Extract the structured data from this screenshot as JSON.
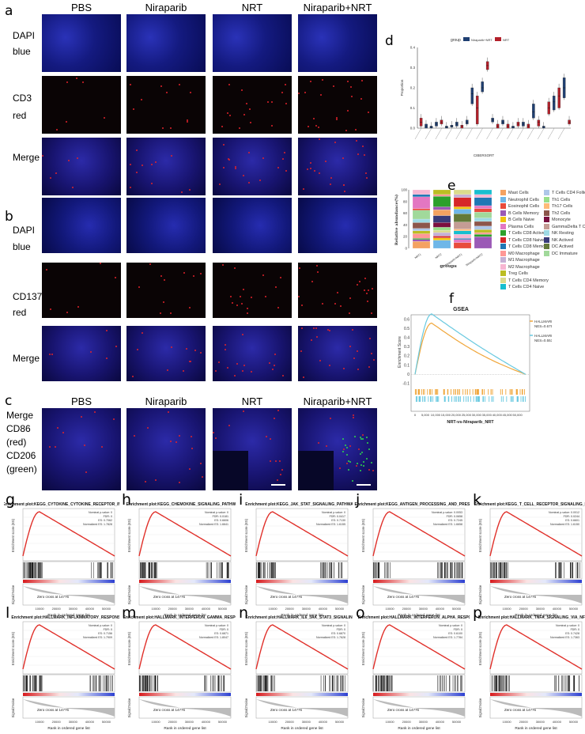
{
  "panels": {
    "a": "a",
    "b": "b",
    "c": "c",
    "d": "d",
    "e": "e",
    "f": "f",
    "g": "g",
    "h": "h",
    "i": "i",
    "j": "j",
    "k": "k",
    "l": "l",
    "m": "m",
    "n": "n",
    "o": "o",
    "p": "p"
  },
  "groups": [
    "PBS",
    "Niraparib",
    "NRT",
    "Niraparib+NRT"
  ],
  "a_rows": [
    "DAPI",
    "blue",
    "CD3",
    "red",
    "Merge"
  ],
  "b_rows": [
    "DAPI",
    "blue",
    "CD137",
    "red",
    "Merge"
  ],
  "c_rows": [
    "Merge",
    "CD86",
    "(red)",
    "CD206",
    "(green)"
  ],
  "d": {
    "legend_title": "group",
    "legend_items": [
      "Niraparib+NRT",
      "NRT"
    ],
    "ylabel": "Proportion",
    "xlabel": "CIBERSORT",
    "yticks": [
      "0.0",
      "0.1",
      "0.2",
      "0.3",
      "0.4"
    ],
    "colors": [
      "#1f3f72",
      "#b3202a"
    ]
  },
  "e": {
    "ylabel": "Relative abundance(%)",
    "xlabel": "groups",
    "yticks": [
      "0",
      "20",
      "40",
      "60",
      "80",
      "100"
    ],
    "xcats": [
      "NRT1",
      "NRT2",
      "Niraparib+NRT1",
      "Niraparib+NRT2"
    ],
    "legend_left": [
      "Mast Cells",
      "Neutrophil Cells",
      "Eosinophil Cells",
      "B Cells Memory",
      "B Cells Naive",
      "Plasma Cells",
      "T Cells CD8 Actived",
      "T Cells CD8 Naive",
      "T Cells CD8 Memory",
      "M0 Macrophage",
      "M1 Macrophage",
      "M2 Macrophage",
      "Treg Cells",
      "T Cells CD4 Memory",
      "T Cells CD4 Naive"
    ],
    "legend_right": [
      "T Cells CD4 Follicular",
      "Th1 Cells",
      "Th17 Cells",
      "Th2 Cells",
      "Monocyte",
      "GammaDelta T Cells",
      "NK Resting",
      "NK Actived",
      "DC Actived",
      "DC Immature"
    ],
    "colors_left": [
      "#f4a261",
      "#6fb7e8",
      "#e84b3c",
      "#9b59b6",
      "#f1c40f",
      "#e377c2",
      "#2ca02c",
      "#d62728",
      "#1f77b4",
      "#ff9896",
      "#c5b0d5",
      "#f7b6d2",
      "#bcbd22",
      "#dbdb8d",
      "#17becf"
    ],
    "colors_right": [
      "#aec7e8",
      "#98df8a",
      "#ffbb78",
      "#8c564b",
      "#7b1040",
      "#c49c94",
      "#9edae5",
      "#393b79",
      "#637939",
      "#a1d99b"
    ]
  },
  "f": {
    "title": "GSEA",
    "ylabel": "Enrichment Score",
    "xlabel": "NRT-vs-Niraparib_NRT",
    "yticks": [
      "0.6",
      "0.5",
      "0.4",
      "0.3",
      "0.2",
      "0.1",
      "0",
      "-0.1"
    ],
    "xticks": [
      "0",
      "5,000",
      "10,000",
      "15,000",
      "20,000",
      "25,000",
      "30,000",
      "35,000",
      "40,000",
      "45,000",
      "50,000"
    ],
    "series": [
      {
        "name": "HALLMARK_HYPOXIA",
        "stats": "NES=0.679,P=0.02",
        "color": "#f0a63a"
      },
      {
        "name": "HALLMARK_ANGIOGENESIS",
        "stats": "NES=0.553,P=0.08",
        "color": "#69c9e0"
      }
    ]
  },
  "gsea": [
    {
      "title": "Enrichment plot:KEGG_CYTOKINE_CYTOKINE_RECEPTOR_INTERA",
      "stats": [
        "Nominal p-value: 0",
        "FDR: 0",
        "ES: 0.7062",
        "Normalized ES: 1.7828"
      ]
    },
    {
      "title": "Enrichment plot:KEGG_CHEMOKINE_SIGNALING_PATHWAY",
      "stats": [
        "Nominal p-value: 0",
        "FDR: 0.0181",
        "ES: 0.6606",
        "Normalized ES: 1.6641"
      ]
    },
    {
      "title": "Enrichment plot:KEGG_JAK_STAT_SIGNALING_PATHWAY",
      "stats": [
        "Nominal p-value: 0",
        "FDR: 0.0417",
        "ES: 0.7130",
        "Normalized ES: 1.6155"
      ]
    },
    {
      "title": "Enrichment plot:KEGG_ANTIGEN_PROCESSING_AND_PRESENTA",
      "stats": [
        "Nominal p-value: 0.0053",
        "FDR: 0.0658",
        "ES: 0.7245",
        "Normalized ES: 1.6658"
      ]
    },
    {
      "title": "Enrichment plot:KEGG_T_CELL_RECEPTOR_SIGNALING_PATH",
      "stats": [
        "Nominal p-value: 0.0012",
        "FDR: 0.0244",
        "ES: 0.6601",
        "Normalized ES: 1.6150"
      ]
    },
    {
      "title": "Enrichment plot:HALLMARK_INFLAMMATORY_RESPONSE",
      "stats": [
        "Nominal p-value: 0",
        "FDR: 0",
        "ES: 0.7156",
        "Normalized ES: 1.7909"
      ]
    },
    {
      "title": "Enrichment plot:HALLMARK_INTERFERON_GAMMA_RESPONS",
      "stats": [
        "Nominal p-value: 0",
        "FDR: 0",
        "ES: 0.6871",
        "Normalized ES: 1.8047"
      ]
    },
    {
      "title": "Enrichment plot:HALLMARK_IL6_JAK_STAT3_SIGNALING",
      "stats": [
        "Nominal p-value: 0",
        "FDR: 0",
        "ES: 0.6870",
        "Normalized ES: 1.7628"
      ]
    },
    {
      "title": "Enrichment plot:HALLMARK_INTERFERON_ALPHA_RESPONS",
      "stats": [
        "Nominal p-value: 0",
        "FDR: 0",
        "ES: 0.6100",
        "Normalized ES: 1.7784"
      ]
    },
    {
      "title": "Enrichment plot:HALLMARK_TNFA_SIGNALING_VIA_NFKB",
      "stats": [
        "Nominal p-value: 0",
        "FDR: 0",
        "ES: 0.7428",
        "Normalized ES: 1.7363"
      ]
    }
  ],
  "gsea_common": {
    "ylabel_top": "Enrichment score (ES)",
    "ylabel_bottom": "Signal2Noise",
    "xlabel": "Rank in ordered gene list",
    "zero_cross": "Zero cross at 14776",
    "xticks": [
      "10000",
      "20000",
      "30000",
      "40000",
      "50000"
    ]
  }
}
